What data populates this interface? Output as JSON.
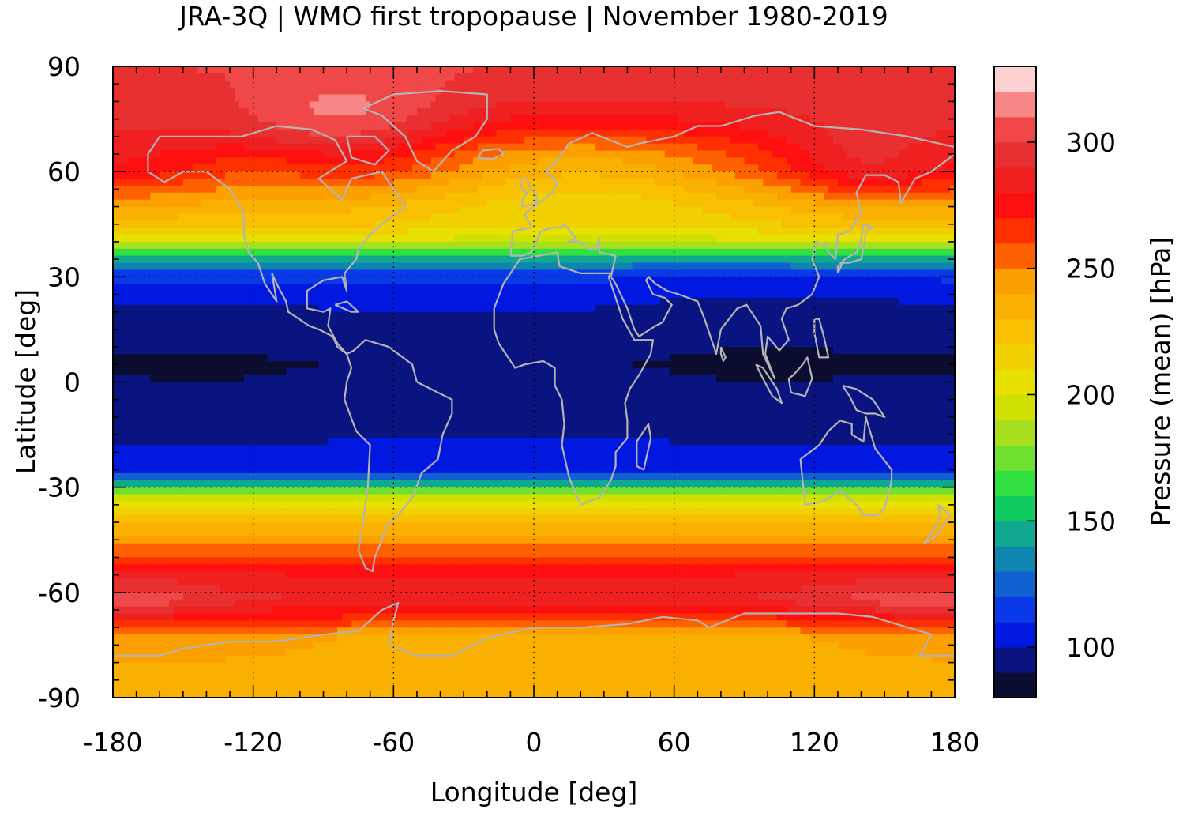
{
  "chart_data": {
    "type": "heatmap",
    "title": "JRA-3Q | WMO first tropopause | November 1980-2019",
    "xlabel": "Longitude [deg]",
    "ylabel": "Latitude [deg]",
    "xlim": [
      -180,
      180
    ],
    "ylim": [
      -90,
      90
    ],
    "x_ticks": [
      -180,
      -120,
      -60,
      0,
      60,
      120,
      180
    ],
    "y_ticks": [
      90,
      60,
      30,
      0,
      -30,
      -60,
      -90
    ],
    "x_tick_labels": [
      "-180",
      "-120",
      "-60",
      "0",
      "60",
      "120",
      "180"
    ],
    "y_tick_labels": [
      "90",
      "60",
      "30",
      "0",
      "-30",
      "-60",
      "-90"
    ],
    "grid": true,
    "colorbar": {
      "label": "Pressure (mean) [hPa]",
      "range": [
        80,
        320
      ],
      "ticks": [
        100,
        150,
        200,
        250,
        300
      ],
      "tick_labels": [
        "100",
        "150",
        "200",
        "250",
        "300"
      ],
      "levels": [
        {
          "from": 80,
          "to": 90,
          "color": "#0b0d30"
        },
        {
          "from": 90,
          "to": 100,
          "color": "#0a1480"
        },
        {
          "from": 100,
          "to": 110,
          "color": "#0018e0"
        },
        {
          "from": 110,
          "to": 120,
          "color": "#0a3ae8"
        },
        {
          "from": 120,
          "to": 130,
          "color": "#1060d0"
        },
        {
          "from": 130,
          "to": 140,
          "color": "#0f86b0"
        },
        {
          "from": 140,
          "to": 150,
          "color": "#10a890"
        },
        {
          "from": 150,
          "to": 160,
          "color": "#10cc60"
        },
        {
          "from": 160,
          "to": 170,
          "color": "#30e040"
        },
        {
          "from": 170,
          "to": 180,
          "color": "#70e030"
        },
        {
          "from": 180,
          "to": 190,
          "color": "#a8e020"
        },
        {
          "from": 190,
          "to": 200,
          "color": "#d0e000"
        },
        {
          "from": 200,
          "to": 210,
          "color": "#e8e000"
        },
        {
          "from": 210,
          "to": 220,
          "color": "#f0d000"
        },
        {
          "from": 220,
          "to": 230,
          "color": "#f8c000"
        },
        {
          "from": 230,
          "to": 240,
          "color": "#fab000"
        },
        {
          "from": 240,
          "to": 250,
          "color": "#fca000"
        },
        {
          "from": 250,
          "to": 260,
          "color": "#ff6000"
        },
        {
          "from": 260,
          "to": 270,
          "color": "#ff3000"
        },
        {
          "from": 270,
          "to": 280,
          "color": "#ff1010"
        },
        {
          "from": 280,
          "to": 290,
          "color": "#f02020"
        },
        {
          "from": 290,
          "to": 300,
          "color": "#e83030"
        },
        {
          "from": 300,
          "to": 310,
          "color": "#f04848"
        },
        {
          "from": 310,
          "to": 320,
          "color": "#f88888"
        },
        {
          "from": 320,
          "to": 330,
          "color": "#fcd0d0"
        }
      ]
    },
    "zonal_pattern": [
      {
        "lat": 90,
        "value": 300
      },
      {
        "lat": 80,
        "value": 295
      },
      {
        "lat": 70,
        "value": 288
      },
      {
        "lat": 60,
        "value": 278
      },
      {
        "lat": 55,
        "value": 260
      },
      {
        "lat": 50,
        "value": 240
      },
      {
        "lat": 45,
        "value": 225
      },
      {
        "lat": 40,
        "value": 200
      },
      {
        "lat": 37,
        "value": 170
      },
      {
        "lat": 34,
        "value": 140
      },
      {
        "lat": 31,
        "value": 115
      },
      {
        "lat": 25,
        "value": 103
      },
      {
        "lat": 15,
        "value": 98
      },
      {
        "lat": 5,
        "value": 92
      },
      {
        "lat": 0,
        "value": 94
      },
      {
        "lat": -10,
        "value": 97
      },
      {
        "lat": -20,
        "value": 102
      },
      {
        "lat": -25,
        "value": 110
      },
      {
        "lat": -28,
        "value": 130
      },
      {
        "lat": -30,
        "value": 160
      },
      {
        "lat": -33,
        "value": 200
      },
      {
        "lat": -38,
        "value": 225
      },
      {
        "lat": -45,
        "value": 245
      },
      {
        "lat": -50,
        "value": 262
      },
      {
        "lat": -55,
        "value": 280
      },
      {
        "lat": -62,
        "value": 292
      },
      {
        "lat": -68,
        "value": 270
      },
      {
        "lat": -73,
        "value": 245
      },
      {
        "lat": -80,
        "value": 240
      },
      {
        "lat": -90,
        "value": 240
      }
    ],
    "coastline_color": "#b4b4b4"
  }
}
